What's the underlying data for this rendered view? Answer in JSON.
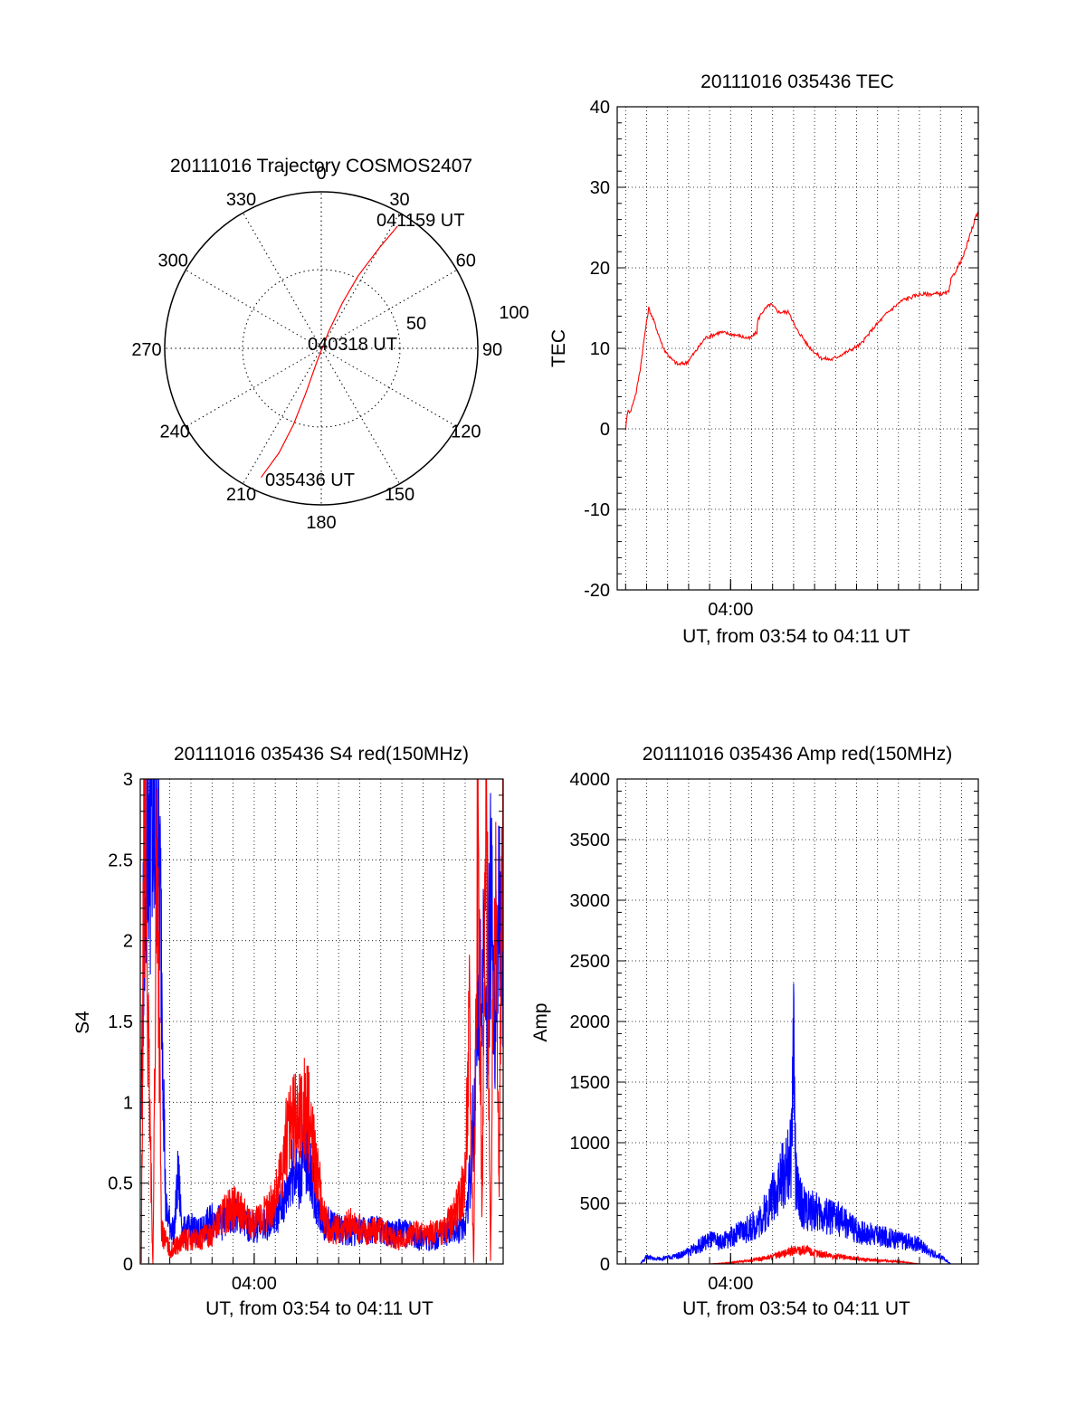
{
  "colors": {
    "red": "#ff0000",
    "blue": "#0000ff",
    "axis": "#000000",
    "grid": "#000000"
  },
  "chart_data": [
    {
      "type": "polar",
      "title": "20111016 Trajectory COSMOS2407",
      "azimuth_labels": [
        "0",
        "30",
        "60",
        "90",
        "120",
        "150",
        "180",
        "210",
        "240",
        "270",
        "300",
        "330"
      ],
      "radial_labels": [
        "50",
        "100"
      ],
      "radial_ticks": [
        50,
        100
      ],
      "annotations": [
        "041159 UT",
        "040318 UT",
        "035436 UT"
      ],
      "trajectory": {
        "color": "red",
        "points": [
          [
            205,
            91
          ],
          [
            202,
            72
          ],
          [
            200,
            52
          ],
          [
            199,
            31
          ],
          [
            198,
            9
          ],
          [
            24,
            12
          ],
          [
            25,
            32
          ],
          [
            27,
            52
          ],
          [
            30,
            74
          ],
          [
            32,
            92
          ]
        ]
      }
    },
    {
      "type": "line",
      "title": "20111016 035436 TEC",
      "xlabel": "UT, from 03:54 to 04:11 UT",
      "ylabel": "TEC",
      "xlim": [
        -5.4,
        11.8
      ],
      "ylim": [
        -20,
        40
      ],
      "x_tick_labels": [
        "04:00"
      ],
      "x_tick_values": [
        0
      ],
      "y_ticks": [
        -20,
        -10,
        0,
        10,
        20,
        30,
        40
      ],
      "grid": true,
      "series": [
        {
          "color": "red",
          "x": [
            -5.0,
            -4.88,
            -4.78,
            -4.62,
            -4.5,
            -4.3,
            -4.1,
            -3.9,
            -3.6,
            -3.2,
            -2.8,
            -2.5,
            -2.1,
            -1.7,
            -1.2,
            -0.5,
            0.2,
            0.9,
            1.25,
            1.3,
            1.5,
            1.9,
            2.3,
            2.8,
            3.1,
            3.4,
            3.7,
            4.3,
            4.8,
            5.5,
            6.2,
            6.8,
            7.5,
            8.2,
            9.0,
            10.2,
            10.4,
            10.5,
            10.8,
            11.1,
            11.4,
            11.7,
            11.8
          ],
          "y": [
            0.0,
            2.5,
            2.0,
            3.5,
            4.5,
            7.5,
            11.5,
            15.0,
            13.0,
            10.0,
            8.6,
            8.0,
            8.2,
            9.5,
            11.3,
            12.0,
            11.7,
            11.2,
            12.0,
            13.5,
            14.5,
            15.5,
            14.5,
            14.5,
            12.5,
            11.5,
            10.3,
            8.8,
            8.6,
            9.5,
            10.5,
            12.5,
            14.5,
            16.0,
            16.7,
            16.8,
            17.0,
            18.5,
            20.0,
            21.5,
            24.0,
            26.5,
            27.0
          ]
        }
      ]
    },
    {
      "type": "line",
      "title": "20111016 035436 S4 red(150MHz)",
      "xlabel": "UT, from 03:54 to 04:11 UT",
      "ylabel": "S4",
      "xlim": [
        -5.4,
        11.8
      ],
      "ylim": [
        0,
        3
      ],
      "x_tick_labels": [
        "04:00"
      ],
      "x_tick_values": [
        0
      ],
      "y_ticks": [
        0,
        0.5,
        1,
        1.5,
        2,
        2.5,
        3
      ],
      "y_tick_labels": [
        "0",
        "0.5",
        "1",
        "1.5",
        "2",
        "2.5",
        "3"
      ],
      "grid": true,
      "series": [
        {
          "color": "blue",
          "x": [
            -5.35,
            -5.2,
            -5.0,
            -4.8,
            -4.6,
            -4.4,
            -4.2,
            -4.0,
            -3.8,
            -3.6,
            -3.4,
            -3.0,
            -2.5,
            -2.0,
            -1.5,
            -1.0,
            -0.5,
            0.0,
            0.5,
            1.0,
            1.5,
            1.8,
            2.1,
            2.4,
            2.7,
            3.0,
            3.3,
            3.6,
            4.0,
            4.5,
            5.0,
            5.5,
            6.0,
            6.5,
            7.0,
            7.5,
            8.0,
            8.5,
            9.0,
            9.5,
            10.0,
            10.2,
            10.4,
            10.6,
            10.8,
            11.0,
            11.2,
            11.4,
            11.6,
            11.8
          ],
          "y": [
            1.0,
            2.5,
            2.8,
            2.6,
            2.9,
            2.0,
            0.35,
            0.25,
            0.2,
            0.55,
            0.2,
            0.22,
            0.2,
            0.28,
            0.25,
            0.3,
            0.25,
            0.22,
            0.25,
            0.3,
            0.4,
            0.6,
            0.5,
            0.7,
            0.55,
            0.35,
            0.25,
            0.25,
            0.22,
            0.2,
            0.2,
            0.22,
            0.2,
            0.18,
            0.2,
            0.18,
            0.15,
            0.15,
            0.18,
            0.2,
            0.25,
            0.5,
            0.9,
            1.5,
            2.0,
            1.3,
            2.2,
            1.6,
            2.4,
            1.8
          ]
        },
        {
          "color": "red",
          "x": [
            -5.35,
            -5.2,
            -5.0,
            -4.8,
            -4.6,
            -4.4,
            -4.2,
            -4.0,
            -3.8,
            -3.6,
            -3.4,
            -3.0,
            -2.5,
            -2.0,
            -1.5,
            -1.0,
            -0.5,
            0.0,
            0.5,
            1.0,
            1.5,
            1.8,
            2.1,
            2.4,
            2.7,
            3.0,
            3.3,
            3.6,
            4.0,
            4.5,
            5.0,
            5.5,
            6.0,
            6.5,
            7.0,
            7.5,
            8.0,
            8.5,
            9.0,
            9.5,
            10.0,
            10.2,
            10.4,
            10.6,
            10.8,
            11.0,
            11.2,
            11.4,
            11.6,
            11.8
          ],
          "y": [
            0.0,
            3.0,
            1.2,
            0.0,
            2.8,
            0.2,
            0.15,
            0.08,
            0.1,
            0.12,
            0.15,
            0.15,
            0.15,
            0.2,
            0.3,
            0.35,
            0.3,
            0.25,
            0.3,
            0.4,
            0.75,
            0.85,
            0.9,
            0.95,
            0.85,
            0.55,
            0.3,
            0.2,
            0.22,
            0.25,
            0.22,
            0.2,
            0.22,
            0.18,
            0.15,
            0.18,
            0.2,
            0.18,
            0.2,
            0.3,
            0.5,
            1.5,
            0.0,
            2.9,
            0.3,
            3.0,
            0.0,
            2.8,
            0.5,
            3.0
          ]
        }
      ]
    },
    {
      "type": "line",
      "title": "20111016 035436 Amp red(150MHz)",
      "xlabel": "UT, from 03:54 to 04:11 UT",
      "ylabel": "Amp",
      "xlim": [
        -5.4,
        11.8
      ],
      "ylim": [
        0,
        4000
      ],
      "x_tick_labels": [
        "04:00"
      ],
      "x_tick_values": [
        0
      ],
      "y_ticks": [
        0,
        500,
        1000,
        1500,
        2000,
        2500,
        3000,
        3500,
        4000
      ],
      "grid": true,
      "series": [
        {
          "color": "blue",
          "x": [
            -5.4,
            -4.3,
            -4.0,
            -3.6,
            -3.0,
            -2.5,
            -2.0,
            -1.5,
            -1.0,
            -0.5,
            0.0,
            0.5,
            1.0,
            1.5,
            1.8,
            2.1,
            2.4,
            2.7,
            2.9,
            3.0,
            3.1,
            3.3,
            3.6,
            4.0,
            4.5,
            5.0,
            5.5,
            6.0,
            6.5,
            7.0,
            7.5,
            8.0,
            8.5,
            9.0,
            9.5,
            10.0,
            10.5,
            11.0,
            11.8
          ],
          "y": [
            0,
            0,
            60,
            40,
            50,
            70,
            100,
            150,
            200,
            180,
            220,
            260,
            300,
            380,
            480,
            600,
            700,
            800,
            900,
            2050,
            700,
            520,
            450,
            430,
            400,
            380,
            330,
            280,
            250,
            230,
            220,
            200,
            180,
            160,
            100,
            60,
            0,
            0,
            0
          ]
        },
        {
          "color": "red",
          "x": [
            -5.4,
            -1.0,
            0.0,
            0.5,
            1.0,
            1.5,
            2.0,
            2.5,
            3.0,
            3.5,
            4.0,
            4.5,
            5.0,
            5.5,
            6.0,
            6.5,
            7.0,
            7.5,
            8.0,
            8.5,
            9.0,
            11.8
          ],
          "y": [
            0,
            0,
            10,
            20,
            30,
            45,
            60,
            80,
            110,
            120,
            90,
            80,
            60,
            55,
            45,
            35,
            30,
            25,
            20,
            10,
            0,
            0
          ]
        }
      ]
    }
  ]
}
